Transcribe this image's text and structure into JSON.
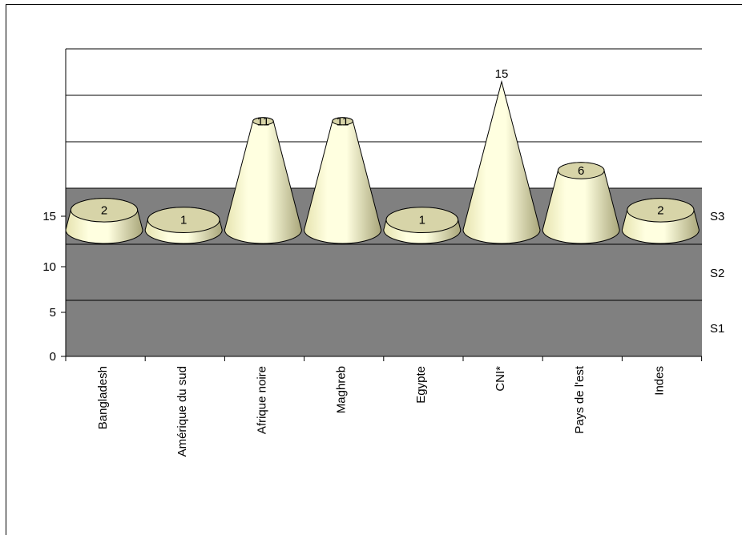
{
  "chart_data": {
    "type": "bar",
    "shape": "3d-cone",
    "categories": [
      "Bangladesh",
      "Amérique du sud",
      "Afrique noire",
      "Maghreb",
      "Egypte",
      "CNI*",
      "Pays de l'est",
      "Indes"
    ],
    "values": [
      2,
      1,
      11,
      11,
      1,
      15,
      6,
      2
    ],
    "value_labels": [
      "2",
      "1",
      "11",
      "11",
      "1",
      "15",
      "6",
      "2"
    ],
    "y_ticks": [
      "0",
      "5",
      "10",
      "15"
    ],
    "series_axis_labels": [
      "S3",
      "S2",
      "S1"
    ],
    "title": "",
    "xlabel": "",
    "ylabel": "",
    "colors": {
      "wall": "#808080",
      "floor": "#808080",
      "cone_light": "#FFFFE0",
      "cone_mid": "#E6E3B0",
      "cone_dark": "#A9A67A",
      "top_face": "#D7D4A8",
      "outline": "#000000",
      "background": "#FFFFFF"
    }
  }
}
